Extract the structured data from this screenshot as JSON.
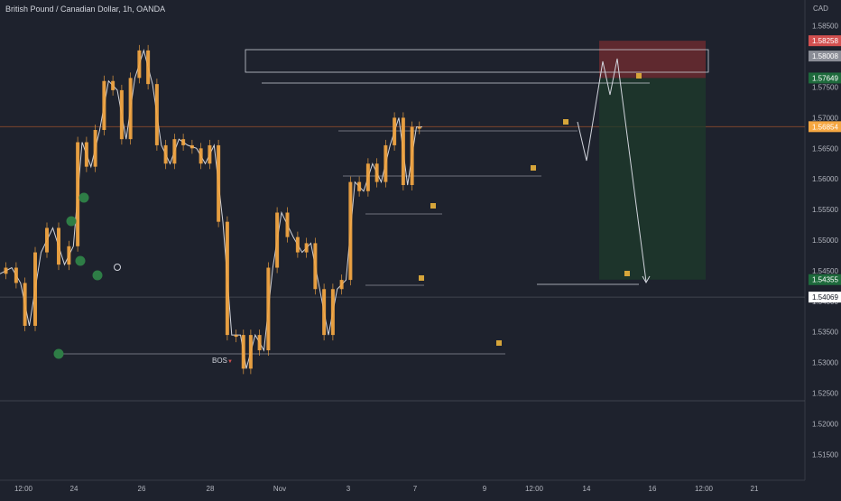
{
  "header": {
    "title": "British Pound / Canadian Dollar, 1h, OANDA",
    "currency": "CAD"
  },
  "colors": {
    "background": "#1e222d",
    "candle": "#f5a742",
    "line": "#d1d4dc",
    "marker": "#2e7d46",
    "stop_zone": "#6b2a30",
    "target_zone": "#1d3b2b",
    "stop_label": "#d35050",
    "target_label": "#1e6a3c",
    "current_price_label": "#f5a742"
  },
  "chart_data": {
    "type": "candlestick",
    "ylim": [
      1.5118,
      1.5885
    ],
    "y_ticks": [
      "1.58500",
      "1.58000",
      "1.57500",
      "1.57000",
      "1.56500",
      "1.56000",
      "1.55500",
      "1.55000",
      "1.54500",
      "1.54000",
      "1.53500",
      "1.53000",
      "1.52500",
      "1.52000",
      "1.51500"
    ],
    "y_tick_values": [
      1.585,
      1.58,
      1.575,
      1.57,
      1.565,
      1.56,
      1.555,
      1.55,
      1.545,
      1.54,
      1.535,
      1.53,
      1.525,
      1.52,
      1.515
    ],
    "x_ticks": [
      "12:00",
      "24",
      "26",
      "28",
      "Nov",
      "3",
      "7",
      "9",
      "12:00",
      "14",
      "16",
      "12:00",
      "21"
    ],
    "price_labels": [
      {
        "text": "1.58258",
        "value": 1.58258,
        "color": "#d35050"
      },
      {
        "text": "1.58008",
        "value": 1.58008,
        "color": "#8a8d96"
      },
      {
        "text": "1.57649",
        "value": 1.57649,
        "color": "#1e6a3c"
      },
      {
        "text": "1.56854",
        "value": 1.56854,
        "color": "#f5a742"
      },
      {
        "text": "1.54355",
        "value": 1.54355,
        "color": "#1e6a3c"
      },
      {
        "text": "1.54069",
        "value": 1.54069,
        "color": "#ffffff"
      }
    ],
    "series": [
      {
        "x": [
          0,
          0.02,
          0.035,
          0.05,
          0.07,
          0.09,
          0.11,
          0.125,
          0.14,
          0.155,
          0.17,
          0.185,
          0.2,
          0.215,
          0.23,
          0.245,
          0.26,
          0.275,
          0.29,
          0.305,
          0.32,
          0.335,
          0.35,
          0.365,
          0.38,
          0.395,
          0.41,
          0.42,
          0.435,
          0.45,
          0.465,
          0.48,
          0.5,
          0.515,
          0.53,
          0.545,
          0.56,
          0.575,
          0.59,
          0.605,
          0.62,
          0.635,
          0.65,
          0.665,
          0.68,
          0.695,
          0.71,
          0.72
        ],
        "values": [
          1.5445,
          1.5455,
          1.543,
          1.536,
          1.548,
          1.552,
          1.546,
          1.549,
          1.566,
          1.562,
          1.568,
          1.576,
          1.5745,
          1.5665,
          1.5765,
          1.581,
          1.5755,
          1.5655,
          1.5625,
          1.5665,
          1.5655,
          1.565,
          1.5625,
          1.5655,
          1.553,
          1.5345,
          1.5345,
          1.529,
          1.5345,
          1.532,
          1.5455,
          1.5545,
          1.5505,
          1.548,
          1.5495,
          1.542,
          1.5345,
          1.542,
          1.5435,
          1.5595,
          1.558,
          1.5625,
          1.5595,
          1.5655,
          1.57,
          1.559,
          1.5685,
          1.5685
        ]
      }
    ],
    "annotations": [
      "BOS"
    ]
  }
}
